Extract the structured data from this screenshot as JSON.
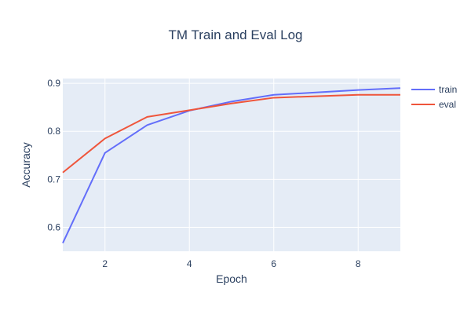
{
  "chart_data": {
    "type": "line",
    "title": "TM Train and Eval Log",
    "xlabel": "Epoch",
    "ylabel": "Accuracy",
    "xlim": [
      1,
      9
    ],
    "ylim": [
      0.55,
      0.91
    ],
    "xticks": [
      2,
      4,
      6,
      8
    ],
    "yticks": [
      0.6,
      0.7,
      0.8,
      0.9
    ],
    "ytick_labels": [
      "0.6",
      "0.7",
      "0.8",
      "0.9"
    ],
    "grid": true,
    "legend_position": "top-right",
    "x": [
      1,
      2,
      3,
      4,
      5,
      6,
      7,
      8,
      9
    ],
    "series": [
      {
        "name": "train",
        "color": "#636efa",
        "values": [
          0.567,
          0.755,
          0.813,
          0.843,
          0.862,
          0.876,
          0.881,
          0.886,
          0.89
        ]
      },
      {
        "name": "eval",
        "color": "#ef553b",
        "values": [
          0.714,
          0.785,
          0.83,
          0.844,
          0.858,
          0.87,
          0.873,
          0.876,
          0.876
        ]
      }
    ],
    "colors": {
      "plot_bg": "#e5ecf6",
      "grid": "#ffffff",
      "text": "#2a3f5f"
    }
  }
}
